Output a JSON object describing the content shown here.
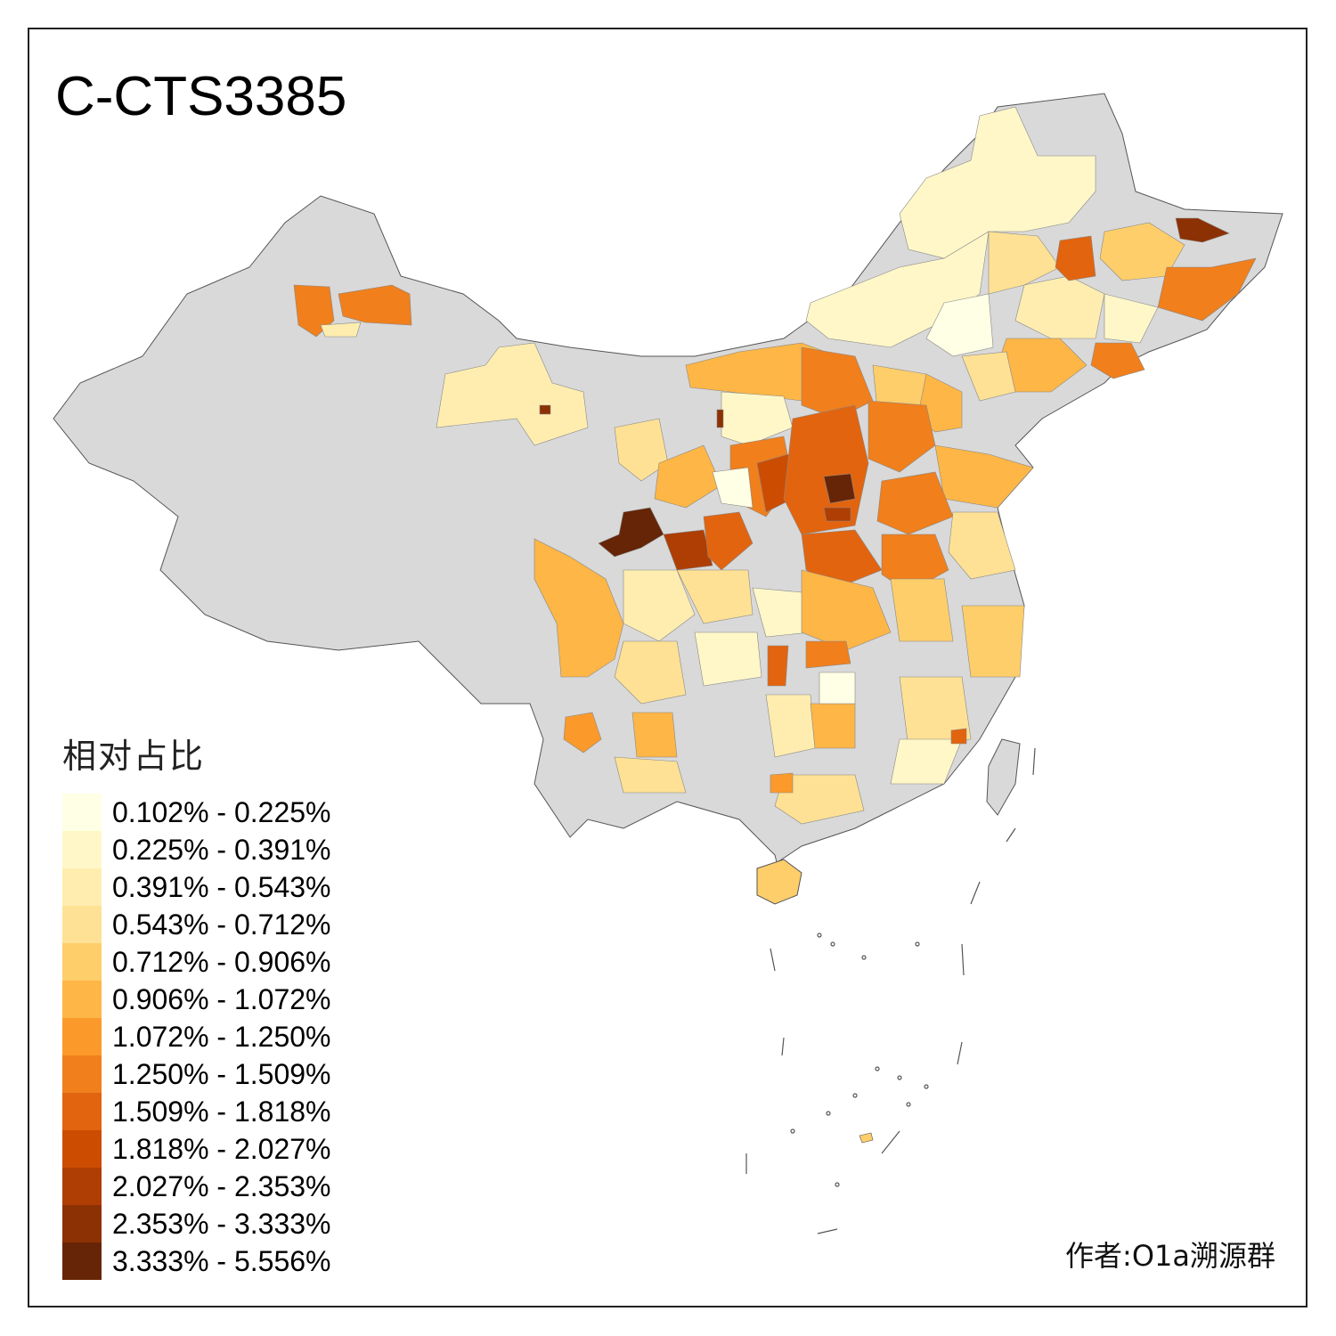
{
  "map": {
    "title": "C-CTS3385",
    "legend_title": "相对占比",
    "legend": [
      {
        "label": "0.102% - 0.225%",
        "color": "#FFFFE5"
      },
      {
        "label": "0.225% - 0.391%",
        "color": "#FFF7C8"
      },
      {
        "label": "0.391% - 0.543%",
        "color": "#FFEDB0"
      },
      {
        "label": "0.543% - 0.712%",
        "color": "#FEE194"
      },
      {
        "label": "0.712% - 0.906%",
        "color": "#FECE6A"
      },
      {
        "label": "0.906% - 1.072%",
        "color": "#FEB646"
      },
      {
        "label": "1.072% - 1.250%",
        "color": "#FB9A2A"
      },
      {
        "label": "1.250% - 1.509%",
        "color": "#F07F1C"
      },
      {
        "label": "1.509% - 1.818%",
        "color": "#E2640F"
      },
      {
        "label": "1.818% - 2.027%",
        "color": "#CC4C02"
      },
      {
        "label": "2.027% - 2.353%",
        "color": "#AE3E03"
      },
      {
        "label": "2.353% - 3.333%",
        "color": "#8C3104"
      },
      {
        "label": "3.333% - 5.556%",
        "color": "#662506"
      }
    ],
    "no_data_color": "#D9D9D9",
    "credit": "作者:O1a溯源群"
  }
}
